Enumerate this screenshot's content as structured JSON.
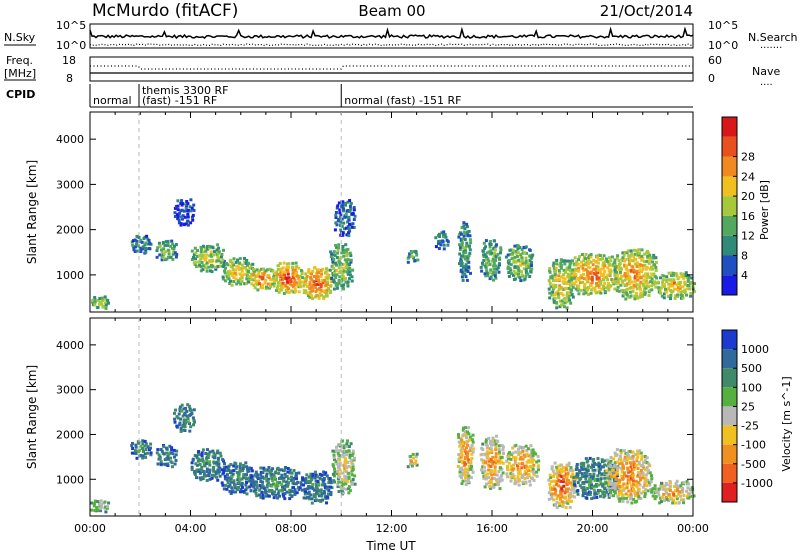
{
  "header": {
    "station": "McMurdo (fitACF)",
    "beam": "Beam 00",
    "date": "21/Oct/2014"
  },
  "top_panels": {
    "nsky": {
      "left_label": "N.Sky",
      "left_ticks": [
        "10^5",
        "10^0"
      ],
      "right_label": "N.Search",
      "right_ticks": [
        "10^5",
        "10^0"
      ],
      "right_legend_dots": "......."
    },
    "freq": {
      "left_label": "Freq.",
      "left_unit": "[MHz]",
      "left_ticks": [
        "18",
        "8"
      ],
      "right_label": "Nave",
      "right_ticks": [
        "60",
        "0"
      ],
      "right_legend_dots": "...."
    },
    "cpid": {
      "label": "CPID",
      "segments": [
        {
          "start_hour": 0.0,
          "end_hour": 1.95,
          "line1": "normal",
          "line2": ""
        },
        {
          "start_hour": 1.95,
          "end_hour": 10.0,
          "line1": "themis 3300 RF",
          "line2": "(fast) -151 RF"
        },
        {
          "start_hour": 10.0,
          "end_hour": 24.0,
          "line1": "normal (fast) -151 RF",
          "line2": ""
        }
      ]
    }
  },
  "chart_data": [
    {
      "type": "heatmap",
      "name": "power",
      "ylabel": "Slant Range [km]",
      "ylim": [
        180,
        4600
      ],
      "xlim_hours": [
        0,
        24
      ],
      "y_ticks": [
        1000,
        2000,
        3000,
        4000
      ],
      "colorbar": {
        "label": "Power [dB]",
        "ticks": [
          "4",
          "8",
          "12",
          "16",
          "20",
          "24",
          "28"
        ],
        "colors": [
          "#1a1ae6",
          "#2050c0",
          "#2f8a78",
          "#53a860",
          "#a6c83a",
          "#f0c020",
          "#f08a20",
          "#e8501e",
          "#d81818"
        ]
      },
      "blobs": [
        {
          "t0": 0.0,
          "t1": 0.7,
          "r0": 280,
          "r1": 560,
          "level": 0.55
        },
        {
          "t0": 1.6,
          "t1": 2.4,
          "r0": 1500,
          "r1": 1900,
          "level": 0.35
        },
        {
          "t0": 2.6,
          "t1": 3.4,
          "r0": 1350,
          "r1": 1800,
          "level": 0.45
        },
        {
          "t0": 3.3,
          "t1": 4.1,
          "r0": 2100,
          "r1": 2700,
          "level": 0.2
        },
        {
          "t0": 4.0,
          "t1": 5.3,
          "r0": 1100,
          "r1": 1700,
          "level": 0.55
        },
        {
          "t0": 5.2,
          "t1": 6.5,
          "r0": 800,
          "r1": 1400,
          "level": 0.6
        },
        {
          "t0": 6.3,
          "t1": 7.3,
          "r0": 700,
          "r1": 1200,
          "level": 0.75
        },
        {
          "t0": 7.2,
          "t1": 8.4,
          "r0": 600,
          "r1": 1300,
          "level": 0.85
        },
        {
          "t0": 8.4,
          "t1": 9.6,
          "r0": 500,
          "r1": 1200,
          "level": 0.85
        },
        {
          "t0": 9.5,
          "t1": 10.4,
          "r0": 700,
          "r1": 1700,
          "level": 0.5
        },
        {
          "t0": 9.7,
          "t1": 10.5,
          "r0": 1900,
          "r1": 2700,
          "level": 0.25
        },
        {
          "t0": 12.6,
          "t1": 13.0,
          "r0": 1300,
          "r1": 1600,
          "level": 0.45
        },
        {
          "t0": 13.7,
          "t1": 14.2,
          "r0": 1600,
          "r1": 2000,
          "level": 0.3
        },
        {
          "t0": 14.6,
          "t1": 15.1,
          "r0": 900,
          "r1": 2200,
          "level": 0.4
        },
        {
          "t0": 15.5,
          "t1": 16.3,
          "r0": 900,
          "r1": 1800,
          "level": 0.45
        },
        {
          "t0": 16.5,
          "t1": 17.6,
          "r0": 900,
          "r1": 1700,
          "level": 0.5
        },
        {
          "t0": 18.2,
          "t1": 19.2,
          "r0": 300,
          "r1": 1400,
          "level": 0.6
        },
        {
          "t0": 19.0,
          "t1": 21.0,
          "r0": 600,
          "r1": 1500,
          "level": 0.75
        },
        {
          "t0": 20.8,
          "t1": 22.5,
          "r0": 500,
          "r1": 1600,
          "level": 0.7
        },
        {
          "t0": 22.5,
          "t1": 24.0,
          "r0": 500,
          "r1": 1100,
          "level": 0.65
        }
      ]
    },
    {
      "type": "heatmap",
      "name": "velocity",
      "ylabel": "Slant Range [km]",
      "xlabel": "Time UT",
      "ylim": [
        180,
        4600
      ],
      "xlim_hours": [
        0,
        24
      ],
      "y_ticks": [
        1000,
        2000,
        3000,
        4000
      ],
      "x_ticks": [
        "00:00",
        "04:00",
        "08:00",
        "12:00",
        "16:00",
        "20:00",
        "00:00"
      ],
      "colorbar": {
        "label": "Velocity [m s^-1]",
        "ticks": [
          "1000",
          "500",
          "100",
          "25",
          "-25",
          "-100",
          "-500",
          "-1000"
        ],
        "colors": [
          "#1a3ad0",
          "#2f6a9a",
          "#3f8a6a",
          "#55b040",
          "#b8b8b8",
          "#f0c020",
          "#f09020",
          "#f06020",
          "#e02020"
        ]
      },
      "blobs": [
        {
          "t0": 0.0,
          "t1": 0.7,
          "r0": 280,
          "r1": 560,
          "level": 0.55
        },
        {
          "t0": 1.6,
          "t1": 2.4,
          "r0": 1500,
          "r1": 1900,
          "level": 0.3
        },
        {
          "t0": 2.6,
          "t1": 3.4,
          "r0": 1300,
          "r1": 1800,
          "level": 0.25
        },
        {
          "t0": 3.3,
          "t1": 4.1,
          "r0": 2100,
          "r1": 2700,
          "level": 0.3
        },
        {
          "t0": 4.0,
          "t1": 5.3,
          "r0": 1000,
          "r1": 1700,
          "level": 0.28
        },
        {
          "t0": 5.2,
          "t1": 6.5,
          "r0": 700,
          "r1": 1400,
          "level": 0.25
        },
        {
          "t0": 6.3,
          "t1": 8.4,
          "r0": 600,
          "r1": 1300,
          "level": 0.28
        },
        {
          "t0": 8.4,
          "t1": 9.6,
          "r0": 500,
          "r1": 1200,
          "level": 0.25
        },
        {
          "t0": 9.6,
          "t1": 10.5,
          "r0": 700,
          "r1": 1900,
          "level": 0.6
        },
        {
          "t0": 12.6,
          "t1": 13.0,
          "r0": 1300,
          "r1": 1600,
          "level": 0.65
        },
        {
          "t0": 14.6,
          "t1": 15.2,
          "r0": 900,
          "r1": 2200,
          "level": 0.75
        },
        {
          "t0": 15.5,
          "t1": 16.4,
          "r0": 800,
          "r1": 2000,
          "level": 0.72
        },
        {
          "t0": 16.5,
          "t1": 17.8,
          "r0": 900,
          "r1": 1800,
          "level": 0.75
        },
        {
          "t0": 18.2,
          "t1": 19.3,
          "r0": 400,
          "r1": 1400,
          "level": 0.85
        },
        {
          "t0": 19.2,
          "t1": 21.0,
          "r0": 600,
          "r1": 1500,
          "level": 0.3
        },
        {
          "t0": 20.5,
          "t1": 22.3,
          "r0": 500,
          "r1": 1700,
          "level": 0.78
        },
        {
          "t0": 22.3,
          "t1": 24.0,
          "r0": 500,
          "r1": 1000,
          "level": 0.7
        }
      ]
    }
  ]
}
